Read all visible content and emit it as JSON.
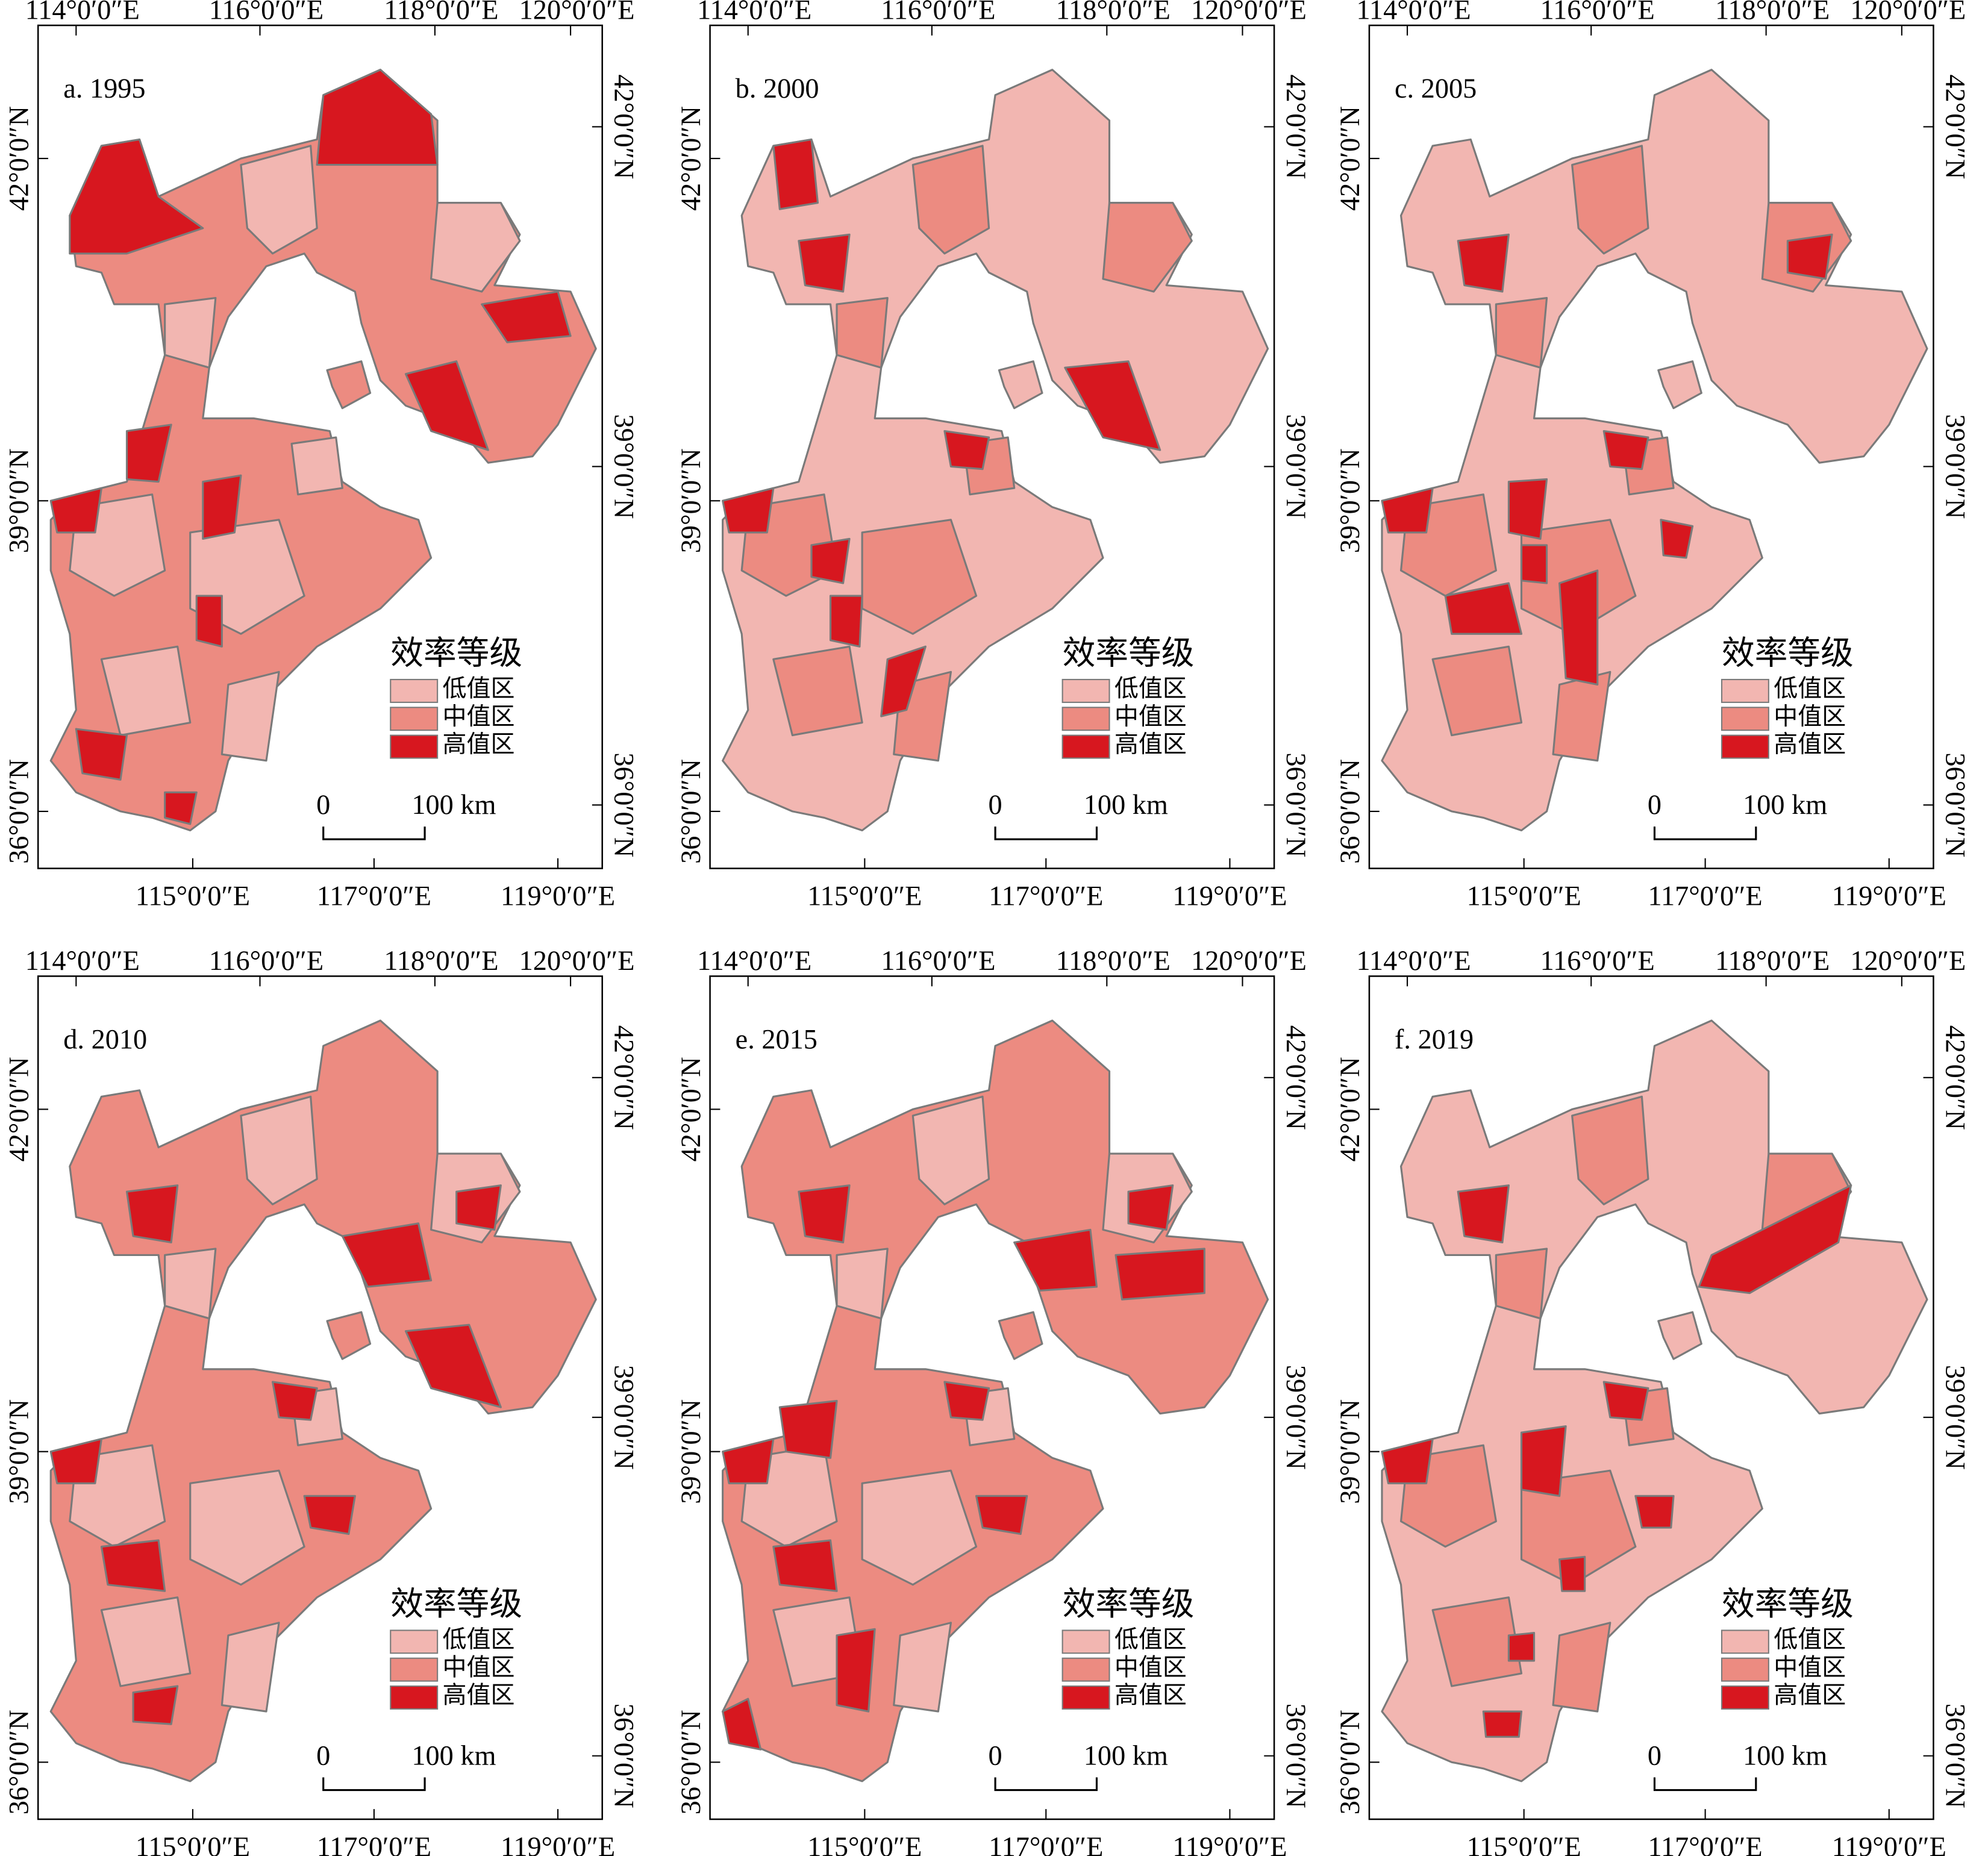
{
  "panels": [
    {
      "label": "a. 1995"
    },
    {
      "label": "b. 2000"
    },
    {
      "label": "c. 2005"
    },
    {
      "label": "d. 2010"
    },
    {
      "label": "e. 2015"
    },
    {
      "label": "f. 2019"
    }
  ],
  "axes": {
    "top_labels": [
      "114°0′0″E",
      "116°0′0″E",
      "118°0′0″E",
      "120°0′0″E"
    ],
    "bottom_labels": [
      "115°0′0″E",
      "117°0′0″E",
      "119°0′0″E"
    ],
    "lat_labels": [
      "42°0′0″N",
      "39°0′0″N",
      "36°0′0″N"
    ]
  },
  "legend": {
    "title": "效率等级",
    "items": [
      "低值区",
      "中值区",
      "高值区"
    ]
  },
  "scale_bar": {
    "start": "0",
    "end": "100 km"
  }
}
